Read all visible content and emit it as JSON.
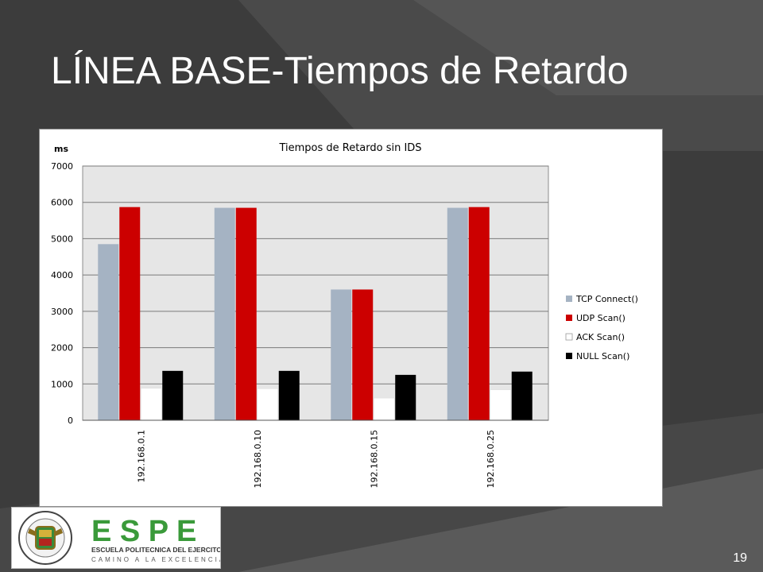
{
  "slide": {
    "title": "LÍNEA BASE-Tiempos de Retardo",
    "page_number": "19"
  },
  "logo": {
    "letters": [
      "E",
      "S",
      "P",
      "E"
    ],
    "name": "ESCUELA POLITECNICA DEL EJERCITO",
    "tagline": "CAMINO A LA EXCELENCIA",
    "seal_text": "ESCUELA POLITECNICA DEL EJERCITO ECUADOR",
    "color": "#3a9a3a"
  },
  "chart_data": {
    "type": "bar",
    "title": "Tiempos de Retardo sin IDS",
    "ylabel": "ms",
    "xlabel": "",
    "ylim": [
      0,
      7000
    ],
    "yticks": [
      0,
      1000,
      2000,
      3000,
      4000,
      5000,
      6000,
      7000
    ],
    "categories": [
      "192.168.0.1",
      "192.168.0.10",
      "192.168.0.15",
      "192.168.0.25"
    ],
    "series": [
      {
        "name": "TCP Connect()",
        "color": "#a5b3c3",
        "values": [
          4850,
          5850,
          3600,
          5850
        ]
      },
      {
        "name": "UDP Scan()",
        "color": "#cc0000",
        "values": [
          5870,
          5850,
          3600,
          5870
        ]
      },
      {
        "name": "ACK Scan()",
        "color": "#ffffff",
        "values": [
          880,
          870,
          610,
          840
        ]
      },
      {
        "name": "NULL Scan()",
        "color": "#000000",
        "values": [
          1360,
          1360,
          1250,
          1340
        ]
      }
    ],
    "grid": true,
    "legend_position": "right",
    "plot_background": "#e6e6e6"
  }
}
